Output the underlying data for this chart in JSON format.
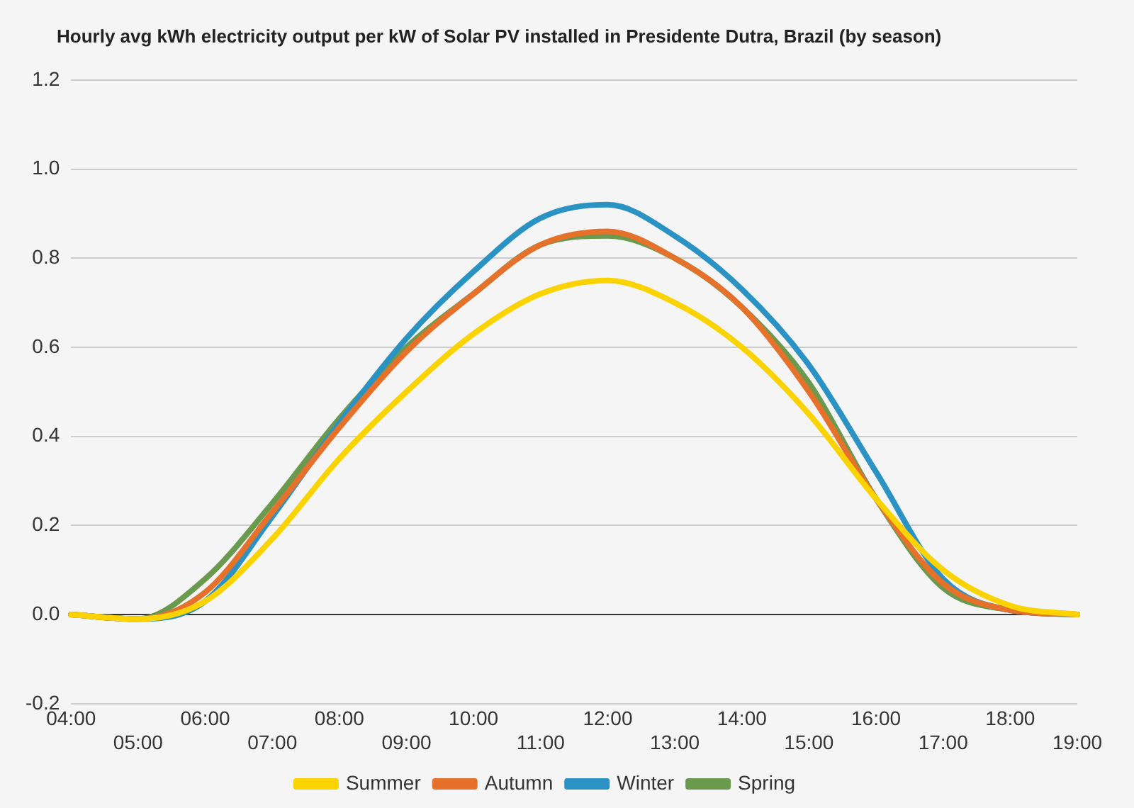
{
  "chart_data": {
    "type": "line",
    "title": "Hourly avg kWh electricity output per kW of Solar PV installed in Presidente Dutra, Brazil (by season)",
    "categories": [
      "04:00",
      "05:00",
      "06:00",
      "07:00",
      "08:00",
      "09:00",
      "10:00",
      "11:00",
      "12:00",
      "13:00",
      "14:00",
      "15:00",
      "16:00",
      "17:00",
      "18:00",
      "19:00"
    ],
    "series": [
      {
        "name": "Summer",
        "color": "#fad300",
        "values": [
          0,
          -0.01,
          0.03,
          0.17,
          0.35,
          0.5,
          0.63,
          0.72,
          0.75,
          0.7,
          0.6,
          0.45,
          0.26,
          0.1,
          0.02,
          0
        ]
      },
      {
        "name": "Autumn",
        "color": "#e5712b",
        "values": [
          0,
          -0.01,
          0.05,
          0.23,
          0.42,
          0.59,
          0.72,
          0.83,
          0.86,
          0.8,
          0.69,
          0.5,
          0.26,
          0.07,
          0.01,
          0
        ]
      },
      {
        "name": "Winter",
        "color": "#2b93c4",
        "values": [
          0,
          -0.01,
          0.03,
          0.22,
          0.43,
          0.62,
          0.77,
          0.89,
          0.92,
          0.85,
          0.73,
          0.56,
          0.32,
          0.08,
          0.01,
          0
        ]
      },
      {
        "name": "Spring",
        "color": "#6a9a4e",
        "values": [
          0,
          -0.01,
          0.08,
          0.25,
          0.44,
          0.6,
          0.72,
          0.83,
          0.85,
          0.8,
          0.69,
          0.52,
          0.26,
          0.06,
          0.01,
          0
        ]
      }
    ],
    "ylim": [
      -0.2,
      1.2
    ],
    "yticks": [
      -0.2,
      {
        "value": 0,
        "label": "0.0"
      },
      0.2,
      0.4,
      0.6,
      0.8,
      {
        "value": 1,
        "label": "1.0"
      },
      1.2
    ],
    "grid": "y",
    "legend": "bottom",
    "marker": "none",
    "line_style": "solid"
  }
}
